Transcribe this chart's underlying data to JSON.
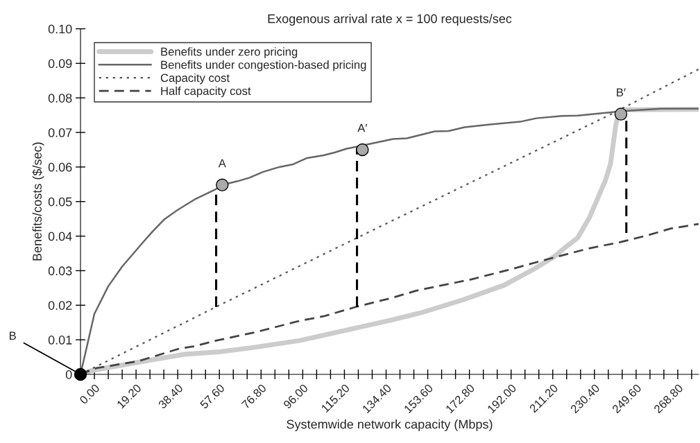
{
  "chart_data": {
    "type": "line",
    "title": "Exogenous arrival rate x = 100 requests/sec",
    "xlabel": "Systemwide network capacity (Mbps)",
    "ylabel": "Benefits/costs ($/sec)",
    "xlim": [
      -6.4,
      278.4
    ],
    "ylim": [
      0,
      0.1
    ],
    "xticks": [
      {
        "value": 0,
        "label": "0.00"
      },
      {
        "value": 6.4,
        "label": null
      },
      {
        "value": 12.8,
        "label": null
      },
      {
        "value": 19.2,
        "label": "19.20"
      },
      {
        "value": 25.6,
        "label": null
      },
      {
        "value": 32,
        "label": null
      },
      {
        "value": 38.4,
        "label": "38.40"
      },
      {
        "value": 44.8,
        "label": null
      },
      {
        "value": 51.2,
        "label": null
      },
      {
        "value": 57.6,
        "label": "57.60"
      },
      {
        "value": 64,
        "label": null
      },
      {
        "value": 70.4,
        "label": null
      },
      {
        "value": 76.8,
        "label": "76.80"
      },
      {
        "value": 83.2,
        "label": null
      },
      {
        "value": 89.6,
        "label": null
      },
      {
        "value": 96,
        "label": "96.00"
      },
      {
        "value": 102.4,
        "label": null
      },
      {
        "value": 108.8,
        "label": null
      },
      {
        "value": 115.2,
        "label": "115.20"
      },
      {
        "value": 121.6,
        "label": null
      },
      {
        "value": 128,
        "label": null
      },
      {
        "value": 134.4,
        "label": "134.40"
      },
      {
        "value": 140.8,
        "label": null
      },
      {
        "value": 147.2,
        "label": null
      },
      {
        "value": 153.6,
        "label": "153.60"
      },
      {
        "value": 160,
        "label": null
      },
      {
        "value": 166.4,
        "label": null
      },
      {
        "value": 172.8,
        "label": "172.80"
      },
      {
        "value": 179.2,
        "label": null
      },
      {
        "value": 185.6,
        "label": null
      },
      {
        "value": 192,
        "label": "192.00"
      },
      {
        "value": 198.4,
        "label": null
      },
      {
        "value": 204.8,
        "label": null
      },
      {
        "value": 211.2,
        "label": "211.20"
      },
      {
        "value": 217.6,
        "label": null
      },
      {
        "value": 224,
        "label": null
      },
      {
        "value": 230.4,
        "label": "230.40"
      },
      {
        "value": 236.8,
        "label": null
      },
      {
        "value": 243.2,
        "label": null
      },
      {
        "value": 249.6,
        "label": "249.60"
      },
      {
        "value": 256,
        "label": null
      },
      {
        "value": 262.4,
        "label": null
      },
      {
        "value": 268.8,
        "label": "268.80"
      },
      {
        "value": 275.2,
        "label": null
      }
    ],
    "yticks": [
      0,
      0.01,
      0.02,
      0.03,
      0.04,
      0.05,
      0.06,
      0.07,
      0.08,
      0.09,
      {
        "value": 0.1,
        "label": "0.10"
      }
    ],
    "grid": false,
    "legend": "top left",
    "marker": "none",
    "series": [
      {
        "name": "Benefits under zero pricing",
        "color": "#cccccc",
        "line_style": "solid",
        "x": [
          -6.4,
          -1.3,
          20.2,
          41.6,
          57.6,
          73.6,
          94.7,
          116.2,
          137.6,
          150.4,
          169.6,
          188.8,
          202.6,
          212.2,
          216.3,
          222.7,
          228.2,
          235.5,
          237.8,
          240.3,
          241.9,
          250,
          278.4
        ],
        "values": [
          0,
          0.0011,
          0.0035,
          0.0058,
          0.0065,
          0.0078,
          0.0098,
          0.0128,
          0.0158,
          0.0178,
          0.0215,
          0.0258,
          0.0305,
          0.0342,
          0.0364,
          0.0395,
          0.0455,
          0.0562,
          0.0609,
          0.0723,
          0.0766,
          0.0766,
          0.0767
        ]
      },
      {
        "name": "Benefits under congestion-based pricing",
        "color": "#666666",
        "line_style": "solid",
        "x": [
          -6.4,
          0,
          6.4,
          12.8,
          22.4,
          26.6,
          32.3,
          38.4,
          46.7,
          56,
          58.9,
          66,
          71.4,
          77.8,
          85.2,
          91.6,
          98,
          105.6,
          110.7,
          116.2,
          121,
          137.6,
          144,
          156.8,
          163.2,
          170.6,
          182.4,
          196.2,
          203.5,
          215.4,
          222.7,
          241.9,
          245.8,
          261,
          278.4
        ],
        "values": [
          0,
          0.0175,
          0.0255,
          0.0312,
          0.0382,
          0.0412,
          0.0449,
          0.0476,
          0.0508,
          0.0536,
          0.0548,
          0.0559,
          0.0569,
          0.0586,
          0.06,
          0.0608,
          0.0626,
          0.0634,
          0.0642,
          0.0653,
          0.0659,
          0.0681,
          0.0683,
          0.0703,
          0.0704,
          0.0715,
          0.0723,
          0.0731,
          0.0741,
          0.0748,
          0.0749,
          0.0761,
          0.0763,
          0.0769,
          0.0769
        ]
      },
      {
        "name": "Capacity cost",
        "color": "#555555",
        "line_style": "dotted",
        "x": [
          -6.4,
          56,
          121,
          236.8,
          278.4
        ],
        "values": [
          0,
          0.0195,
          0.0395,
          0.0749,
          0.0883
        ]
      },
      {
        "name": "Half capacity cost",
        "color": "#444444",
        "line_style": "dashed",
        "x": [
          -6.4,
          0.96,
          20.2,
          39.4,
          45.8,
          56.3,
          73.6,
          94.7,
          105.6,
          121,
          137.6,
          148.2,
          173.8,
          190.7,
          209.9,
          228.2,
          241.9,
          254.7,
          265.6,
          278.4
        ],
        "values": [
          0,
          0.0018,
          0.0038,
          0.0075,
          0.0081,
          0.0098,
          0.0121,
          0.0155,
          0.0168,
          0.0196,
          0.0222,
          0.0242,
          0.0275,
          0.0302,
          0.0335,
          0.0365,
          0.0382,
          0.0402,
          0.0422,
          0.0435
        ]
      },
      {
        "color": "#000000",
        "line_style": "dashed",
        "x": [
          56.1,
          56.1
        ],
        "values": [
          0.0195,
          0.0538
        ]
      },
      {
        "color": "#000000",
        "line_style": "dashed",
        "x": [
          121,
          121
        ],
        "values": [
          0.0195,
          0.0655
        ]
      },
      {
        "color": "#000000",
        "line_style": "dashed",
        "x": [
          245.1,
          245.1
        ],
        "values": [
          0.0409,
          0.075
        ]
      },
      {
        "type": "scatter",
        "marker": "circle",
        "color": "#aaaaaa",
        "x": [
          58.9,
          123.5,
          242.6
        ],
        "values": [
          0.0548,
          0.065,
          0.0753
        ]
      },
      {
        "type": "scatter",
        "marker": "circle",
        "color": "#000000",
        "x": [
          -6.4
        ],
        "values": [
          0
        ]
      }
    ],
    "annotations": [
      {
        "text": "A",
        "x": 58.9,
        "y": 0.0548
      },
      {
        "text": "A′",
        "x": 123.5,
        "y": 0.065
      },
      {
        "text": "B′",
        "x": 242.6,
        "y": 0.0753
      },
      {
        "text": "B",
        "x": -6.4,
        "y": 0
      }
    ]
  }
}
